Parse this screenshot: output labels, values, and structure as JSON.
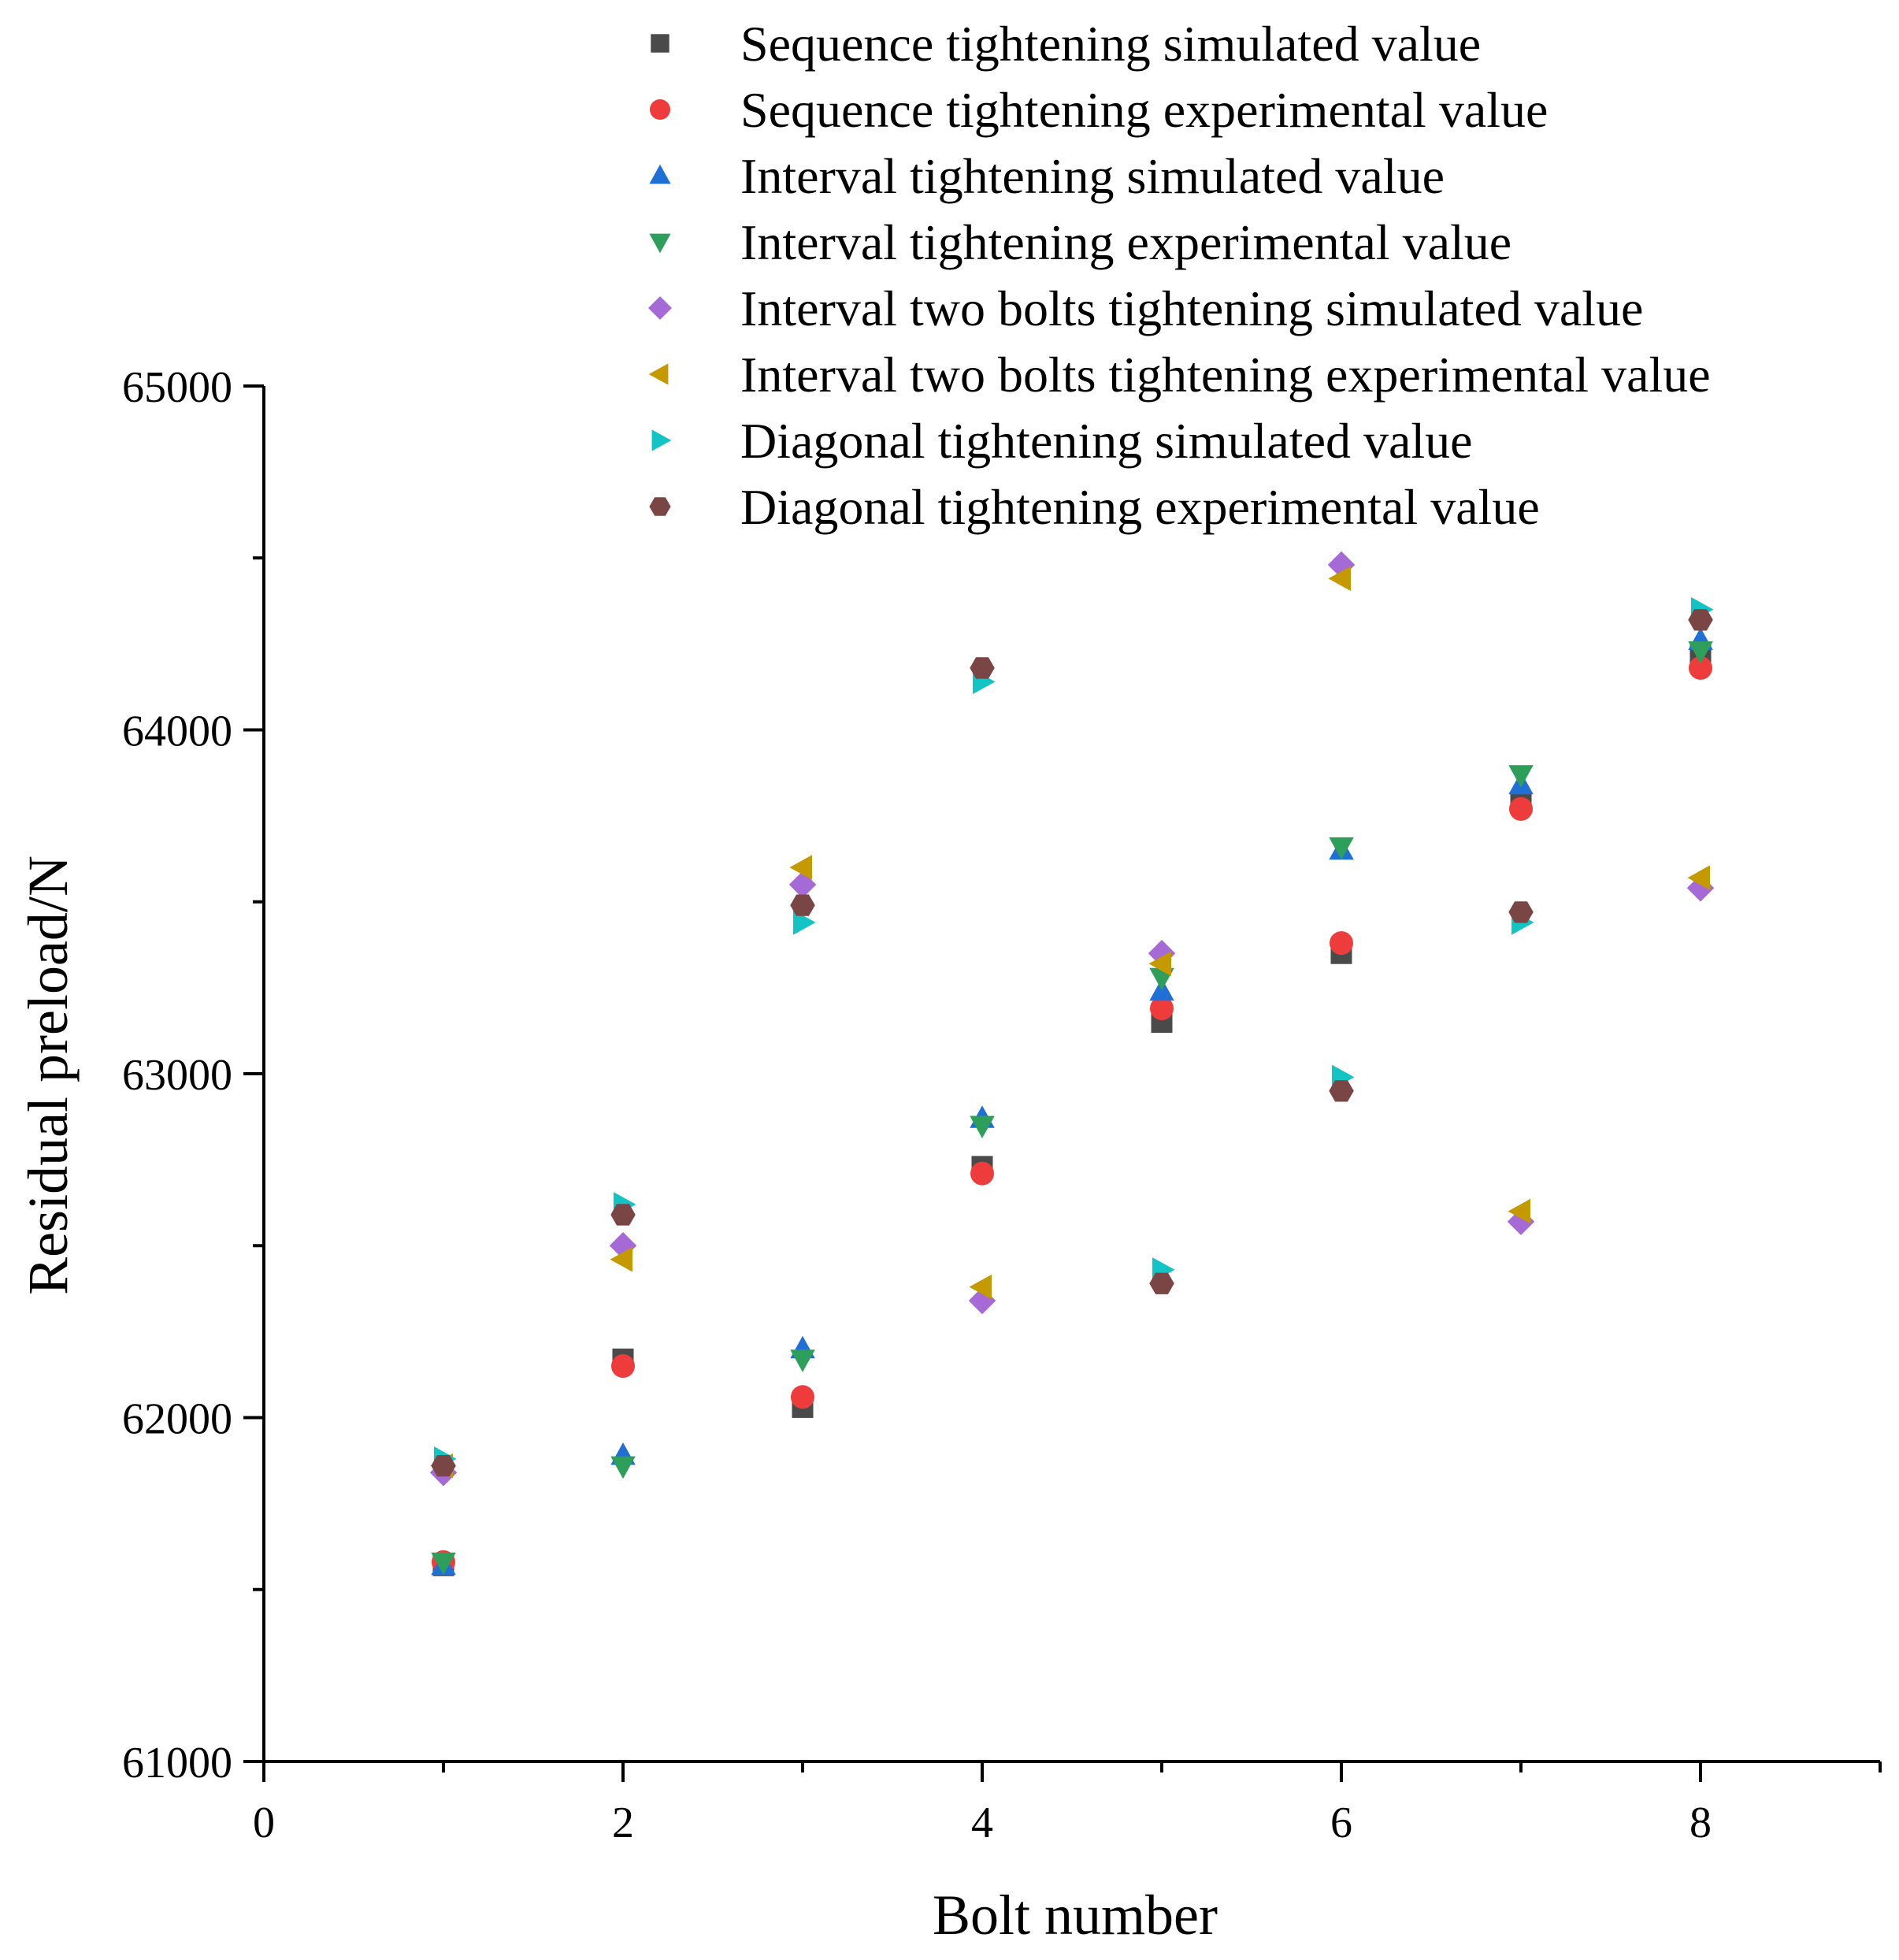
{
  "chart_data": {
    "type": "scatter",
    "title": "",
    "xlabel": "Bolt number",
    "ylabel": "Residual preload/N",
    "xlim": [
      0,
      9
    ],
    "ylim": [
      61000,
      65000
    ],
    "x_ticks": [
      0,
      2,
      4,
      6,
      8
    ],
    "x_tick_labels": [
      "0",
      "2",
      "4",
      "6",
      "8"
    ],
    "y_ticks": [
      61000,
      62000,
      63000,
      64000,
      65000
    ],
    "y_tick_labels": [
      "61000",
      "62000",
      "63000",
      "64000",
      "65000"
    ],
    "grid": false,
    "legend_position": "top",
    "x": [
      1,
      2,
      3,
      4,
      5,
      6,
      7,
      8
    ],
    "series": [
      {
        "name": "Sequence tightening simulated value",
        "marker": "square",
        "color": "#4a4a4a",
        "values": [
          61570,
          62170,
          62030,
          62730,
          63150,
          63350,
          63790,
          64220
        ]
      },
      {
        "name": "Sequence tightening experimental value",
        "marker": "circle",
        "color": "#ee3b3b",
        "values": [
          61580,
          62150,
          62060,
          62710,
          63190,
          63380,
          63770,
          64180
        ]
      },
      {
        "name": "Interval tightening simulated value",
        "marker": "triangle-up",
        "color": "#1f6fd6",
        "values": [
          61570,
          61890,
          62200,
          62870,
          63240,
          63650,
          63840,
          64260
        ]
      },
      {
        "name": "Interval tightening experimental value",
        "marker": "triangle-down",
        "color": "#2e9e5b",
        "values": [
          61580,
          61860,
          62170,
          62850,
          63280,
          63660,
          63870,
          64230
        ]
      },
      {
        "name": "Interval two bolts tightening simulated value",
        "marker": "diamond",
        "color": "#a66ad6",
        "values": [
          61840,
          62500,
          63550,
          62340,
          63350,
          64480,
          62570,
          63540
        ]
      },
      {
        "name": "Interval two bolts tightening experimental value",
        "marker": "triangle-left",
        "color": "#c49a00",
        "values": [
          61860,
          62460,
          63600,
          62380,
          63320,
          64440,
          62600,
          63570
        ]
      },
      {
        "name": "Diagonal tightening simulated value",
        "marker": "triangle-right",
        "color": "#13c4c4",
        "values": [
          61880,
          62620,
          63440,
          64140,
          62430,
          62990,
          63440,
          64350
        ]
      },
      {
        "name": "Diagonal tightening experimental value",
        "marker": "hexagon",
        "color": "#7a4545",
        "values": [
          61860,
          62590,
          63490,
          64180,
          62390,
          62950,
          63470,
          64320
        ]
      }
    ]
  }
}
